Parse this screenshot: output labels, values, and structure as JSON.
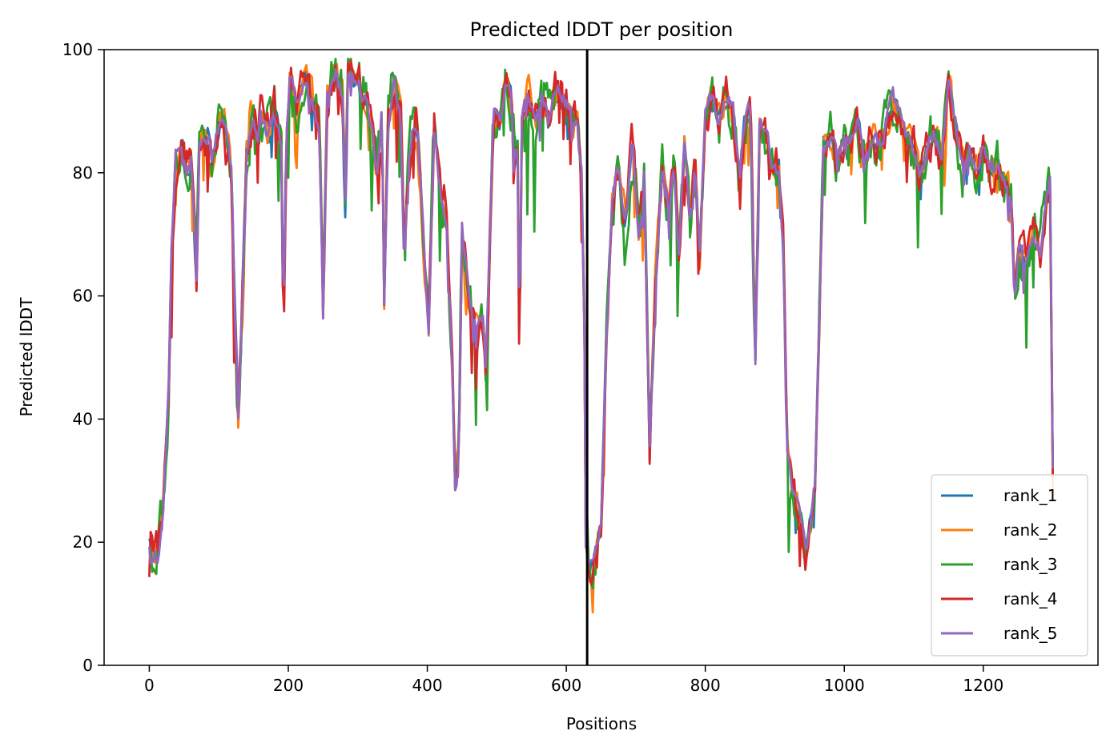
{
  "chart_data": {
    "type": "line",
    "title": "Predicted lDDT per position",
    "xlabel": "Positions",
    "ylabel": "Predicted lDDT",
    "xlim": [
      -65,
      1365
    ],
    "ylim": [
      0,
      100
    ],
    "x_ticks": [
      0,
      200,
      400,
      600,
      800,
      1000,
      1200
    ],
    "y_ticks": [
      0,
      20,
      40,
      60,
      80,
      100
    ],
    "grid": false,
    "legend_position": "lower right",
    "chain_break": 630,
    "series_colors": [
      "#1f77b4",
      "#ff7f0e",
      "#2ca02c",
      "#d62728",
      "#9467bd"
    ],
    "series_names": [
      "rank_1",
      "rank_2",
      "rank_3",
      "rank_4",
      "rank_5"
    ],
    "series_jitter": [
      1.5,
      2.5,
      4.0,
      3.0,
      1.5
    ],
    "profile": [
      [
        0,
        20
      ],
      [
        5,
        17
      ],
      [
        12,
        18
      ],
      [
        20,
        25
      ],
      [
        28,
        45
      ],
      [
        32,
        68
      ],
      [
        38,
        82
      ],
      [
        48,
        84
      ],
      [
        55,
        80
      ],
      [
        60,
        82
      ],
      [
        68,
        63
      ],
      [
        72,
        85
      ],
      [
        85,
        86
      ],
      [
        90,
        82
      ],
      [
        100,
        88
      ],
      [
        110,
        87
      ],
      [
        118,
        80
      ],
      [
        124,
        55
      ],
      [
        128,
        40
      ],
      [
        134,
        60
      ],
      [
        140,
        83
      ],
      [
        150,
        90
      ],
      [
        155,
        85
      ],
      [
        160,
        89
      ],
      [
        170,
        86
      ],
      [
        180,
        90
      ],
      [
        190,
        85
      ],
      [
        193,
        53
      ],
      [
        197,
        85
      ],
      [
        202,
        95
      ],
      [
        212,
        90
      ],
      [
        222,
        96
      ],
      [
        235,
        92
      ],
      [
        245,
        88
      ],
      [
        250,
        57
      ],
      [
        256,
        93
      ],
      [
        268,
        97
      ],
      [
        278,
        92
      ],
      [
        282,
        75
      ],
      [
        286,
        96
      ],
      [
        300,
        95
      ],
      [
        310,
        92
      ],
      [
        320,
        88
      ],
      [
        328,
        80
      ],
      [
        335,
        90
      ],
      [
        338,
        58
      ],
      [
        344,
        88
      ],
      [
        352,
        95
      ],
      [
        362,
        88
      ],
      [
        367,
        65
      ],
      [
        372,
        80
      ],
      [
        378,
        86
      ],
      [
        385,
        88
      ],
      [
        392,
        75
      ],
      [
        398,
        62
      ],
      [
        402,
        55
      ],
      [
        410,
        88
      ],
      [
        420,
        76
      ],
      [
        428,
        72
      ],
      [
        436,
        50
      ],
      [
        440,
        30
      ],
      [
        445,
        32
      ],
      [
        450,
        72
      ],
      [
        460,
        60
      ],
      [
        470,
        55
      ],
      [
        480,
        56
      ],
      [
        484,
        47
      ],
      [
        488,
        60
      ],
      [
        495,
        90
      ],
      [
        505,
        88
      ],
      [
        512,
        95
      ],
      [
        520,
        92
      ],
      [
        525,
        85
      ],
      [
        530,
        82
      ],
      [
        533,
        50
      ],
      [
        536,
        88
      ],
      [
        545,
        93
      ],
      [
        555,
        88
      ],
      [
        565,
        92
      ],
      [
        575,
        88
      ],
      [
        585,
        93
      ],
      [
        595,
        92
      ],
      [
        605,
        90
      ],
      [
        615,
        88
      ],
      [
        622,
        80
      ],
      [
        626,
        55
      ],
      [
        628,
        20
      ],
      [
        634,
        16
      ],
      [
        644,
        18
      ],
      [
        650,
        22
      ],
      [
        658,
        55
      ],
      [
        666,
        75
      ],
      [
        675,
        82
      ],
      [
        685,
        72
      ],
      [
        695,
        85
      ],
      [
        705,
        70
      ],
      [
        712,
        80
      ],
      [
        720,
        35
      ],
      [
        728,
        62
      ],
      [
        738,
        80
      ],
      [
        748,
        74
      ],
      [
        755,
        82
      ],
      [
        762,
        66
      ],
      [
        770,
        85
      ],
      [
        778,
        72
      ],
      [
        785,
        82
      ],
      [
        792,
        66
      ],
      [
        800,
        90
      ],
      [
        810,
        92
      ],
      [
        820,
        88
      ],
      [
        830,
        92
      ],
      [
        840,
        90
      ],
      [
        850,
        78
      ],
      [
        855,
        88
      ],
      [
        865,
        90
      ],
      [
        872,
        50
      ],
      [
        878,
        88
      ],
      [
        890,
        85
      ],
      [
        898,
        80
      ],
      [
        906,
        82
      ],
      [
        912,
        68
      ],
      [
        918,
        35
      ],
      [
        925,
        28
      ],
      [
        935,
        25
      ],
      [
        945,
        18
      ],
      [
        952,
        24
      ],
      [
        958,
        30
      ],
      [
        965,
        60
      ],
      [
        970,
        85
      ],
      [
        980,
        86
      ],
      [
        990,
        82
      ],
      [
        1000,
        85
      ],
      [
        1010,
        86
      ],
      [
        1020,
        88
      ],
      [
        1030,
        82
      ],
      [
        1040,
        86
      ],
      [
        1050,
        84
      ],
      [
        1060,
        88
      ],
      [
        1070,
        92
      ],
      [
        1080,
        90
      ],
      [
        1090,
        86
      ],
      [
        1100,
        84
      ],
      [
        1110,
        80
      ],
      [
        1120,
        84
      ],
      [
        1130,
        86
      ],
      [
        1140,
        82
      ],
      [
        1150,
        95
      ],
      [
        1160,
        88
      ],
      [
        1170,
        82
      ],
      [
        1180,
        84
      ],
      [
        1190,
        80
      ],
      [
        1200,
        84
      ],
      [
        1210,
        80
      ],
      [
        1220,
        82
      ],
      [
        1230,
        78
      ],
      [
        1240,
        76
      ],
      [
        1245,
        60
      ],
      [
        1252,
        68
      ],
      [
        1262,
        65
      ],
      [
        1272,
        70
      ],
      [
        1282,
        67
      ],
      [
        1290,
        74
      ],
      [
        1296,
        78
      ],
      [
        1300,
        30
      ]
    ]
  }
}
